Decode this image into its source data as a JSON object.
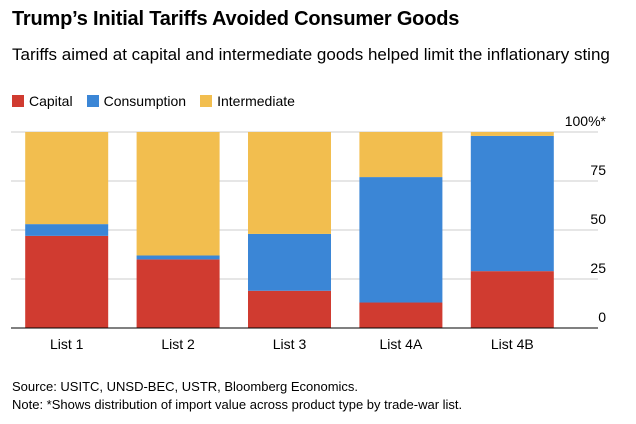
{
  "title": "Trump’s Initial Tariffs Avoided Consumer Goods",
  "subtitle": "Tariffs aimed at capital and intermediate goods helped limit the inflationary sting",
  "source": "Source: USITC, UNSD-BEC, USTR, Bloomberg Economics.",
  "note": "Note: *Shows distribution of import value across product type by trade-war list.",
  "colors": {
    "capital": "#d03b30",
    "consumption": "#3b86d6",
    "intermediate": "#f2be4f"
  },
  "chart_data": {
    "type": "bar",
    "stacked": true,
    "categories": [
      "List 1",
      "List 2",
      "List 3",
      "List 4A",
      "List 4B"
    ],
    "series": [
      {
        "name": "Capital",
        "values": [
          47,
          35,
          19,
          13,
          29
        ]
      },
      {
        "name": "Consumption",
        "values": [
          6,
          2,
          29,
          64,
          69
        ]
      },
      {
        "name": "Intermediate",
        "values": [
          47,
          63,
          52,
          23,
          2
        ]
      }
    ],
    "ylim": [
      0,
      100
    ],
    "yticks": [
      0,
      25,
      50,
      75,
      100
    ],
    "ytick_labels": [
      "0",
      "25",
      "50",
      "75",
      "100%*"
    ],
    "grid": true,
    "legend": "top-left"
  }
}
